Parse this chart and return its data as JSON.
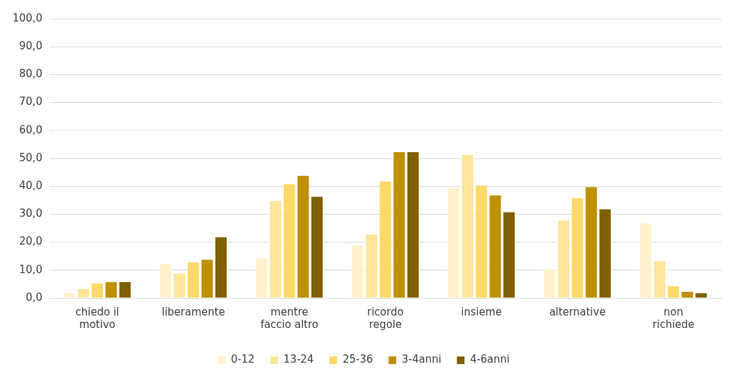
{
  "chart_data": {
    "type": "bar",
    "categories": [
      "chiedo il\nmotivo",
      "liberamente",
      "mentre\nfaccio altro",
      "ricordo\nregole",
      "insieme",
      "alternative",
      "non\nrichiede"
    ],
    "series": [
      {
        "name": "0-12",
        "color": "#fff2cc",
        "values": [
          2,
          12.5,
          14.5,
          19,
          39.5,
          10.5,
          27
        ]
      },
      {
        "name": "13-24",
        "color": "#ffe599",
        "values": [
          3.5,
          9,
          35,
          23,
          51.5,
          28,
          13.5
        ]
      },
      {
        "name": "25-36",
        "color": "#ffd966",
        "values": [
          5.5,
          13,
          41,
          42,
          40.5,
          36,
          4.5
        ]
      },
      {
        "name": "3-4anni",
        "color": "#bf9000",
        "values": [
          6,
          14,
          44,
          52.5,
          37,
          40,
          2.5
        ]
      },
      {
        "name": "4-6anni",
        "color": "#7f6000",
        "values": [
          6,
          22,
          36.5,
          52.5,
          31,
          32,
          2
        ]
      }
    ],
    "ylim": [
      0,
      100
    ],
    "yticks": [
      {
        "value": 0,
        "label": "0,0"
      },
      {
        "value": 10,
        "label": "10,0"
      },
      {
        "value": 20,
        "label": "20,0"
      },
      {
        "value": 30,
        "label": "30,0"
      },
      {
        "value": 40,
        "label": "40,0"
      },
      {
        "value": 50,
        "label": "50,0"
      },
      {
        "value": 60,
        "label": "60,0"
      },
      {
        "value": 70,
        "label": "70,0"
      },
      {
        "value": 80,
        "label": "80,0"
      },
      {
        "value": 90,
        "label": "90,0"
      },
      {
        "value": 100,
        "label": "100,0"
      }
    ],
    "grid": "y",
    "legend": "bottom"
  }
}
